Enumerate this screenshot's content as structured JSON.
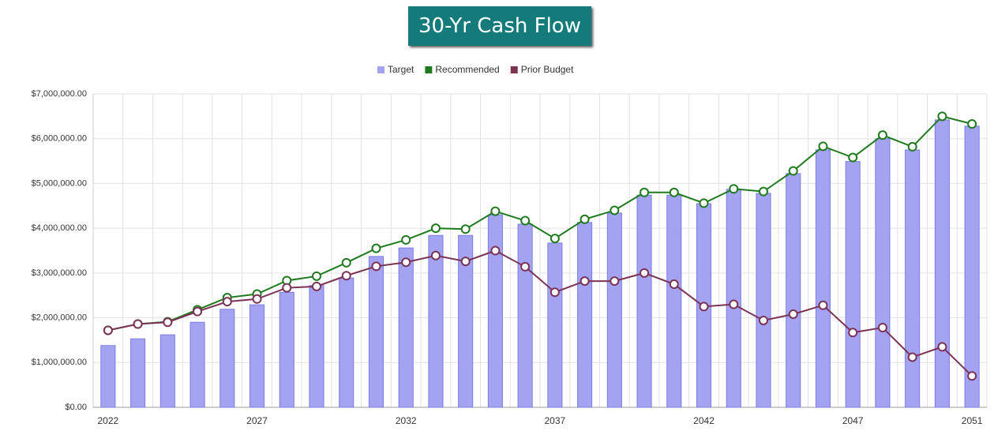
{
  "chart_data": {
    "type": "bar_line",
    "title": "30-Yr Cash Flow",
    "categories": [
      "2022",
      null,
      null,
      null,
      null,
      "2027",
      null,
      null,
      null,
      null,
      "2032",
      null,
      null,
      null,
      null,
      "2037",
      null,
      null,
      null,
      null,
      "2042",
      null,
      null,
      null,
      null,
      "2047",
      null,
      null,
      null,
      "2051"
    ],
    "series": [
      {
        "name": "Target",
        "kind": "bar",
        "color": "#a3a3f2",
        "values": [
          1380000,
          1530000,
          1620000,
          1900000,
          2190000,
          2290000,
          2570000,
          2720000,
          2890000,
          3370000,
          3560000,
          3840000,
          3840000,
          4300000,
          4090000,
          3670000,
          4130000,
          4340000,
          4740000,
          4740000,
          4550000,
          4870000,
          4780000,
          5220000,
          5750000,
          5490000,
          6000000,
          5750000,
          6420000,
          6280000
        ]
      },
      {
        "name": "Recommended",
        "kind": "line",
        "color": "#1f7a1f",
        "values": [
          1720000,
          1860000,
          1910000,
          2180000,
          2450000,
          2530000,
          2830000,
          2930000,
          3230000,
          3550000,
          3740000,
          4000000,
          3980000,
          4380000,
          4170000,
          3770000,
          4200000,
          4400000,
          4800000,
          4800000,
          4560000,
          4880000,
          4820000,
          5280000,
          5830000,
          5580000,
          6080000,
          5820000,
          6500000,
          6330000
        ]
      },
      {
        "name": "Prior Budget",
        "kind": "line",
        "color": "#7b3355",
        "values": [
          1720000,
          1860000,
          1900000,
          2140000,
          2360000,
          2420000,
          2670000,
          2700000,
          2940000,
          3150000,
          3240000,
          3390000,
          3260000,
          3500000,
          3140000,
          2570000,
          2820000,
          2820000,
          3000000,
          2750000,
          2250000,
          2300000,
          1940000,
          2080000,
          2280000,
          1670000,
          1780000,
          1120000,
          1350000,
          700000
        ]
      }
    ],
    "ylim": [
      0,
      7000000
    ],
    "yticks": [
      {
        "value": 0,
        "label": "$0.00"
      },
      {
        "value": 1000000,
        "label": "$1,000,000.00"
      },
      {
        "value": 2000000,
        "label": "$2,000,000.00"
      },
      {
        "value": 3000000,
        "label": "$3,000,000.00"
      },
      {
        "value": 4000000,
        "label": "$4,000,000.00"
      },
      {
        "value": 5000000,
        "label": "$5,000,000.00"
      },
      {
        "value": 6000000,
        "label": "$6,000,000.00"
      },
      {
        "value": 7000000,
        "label": "$7,000,000.00"
      }
    ],
    "grid": true,
    "legend": "top"
  }
}
